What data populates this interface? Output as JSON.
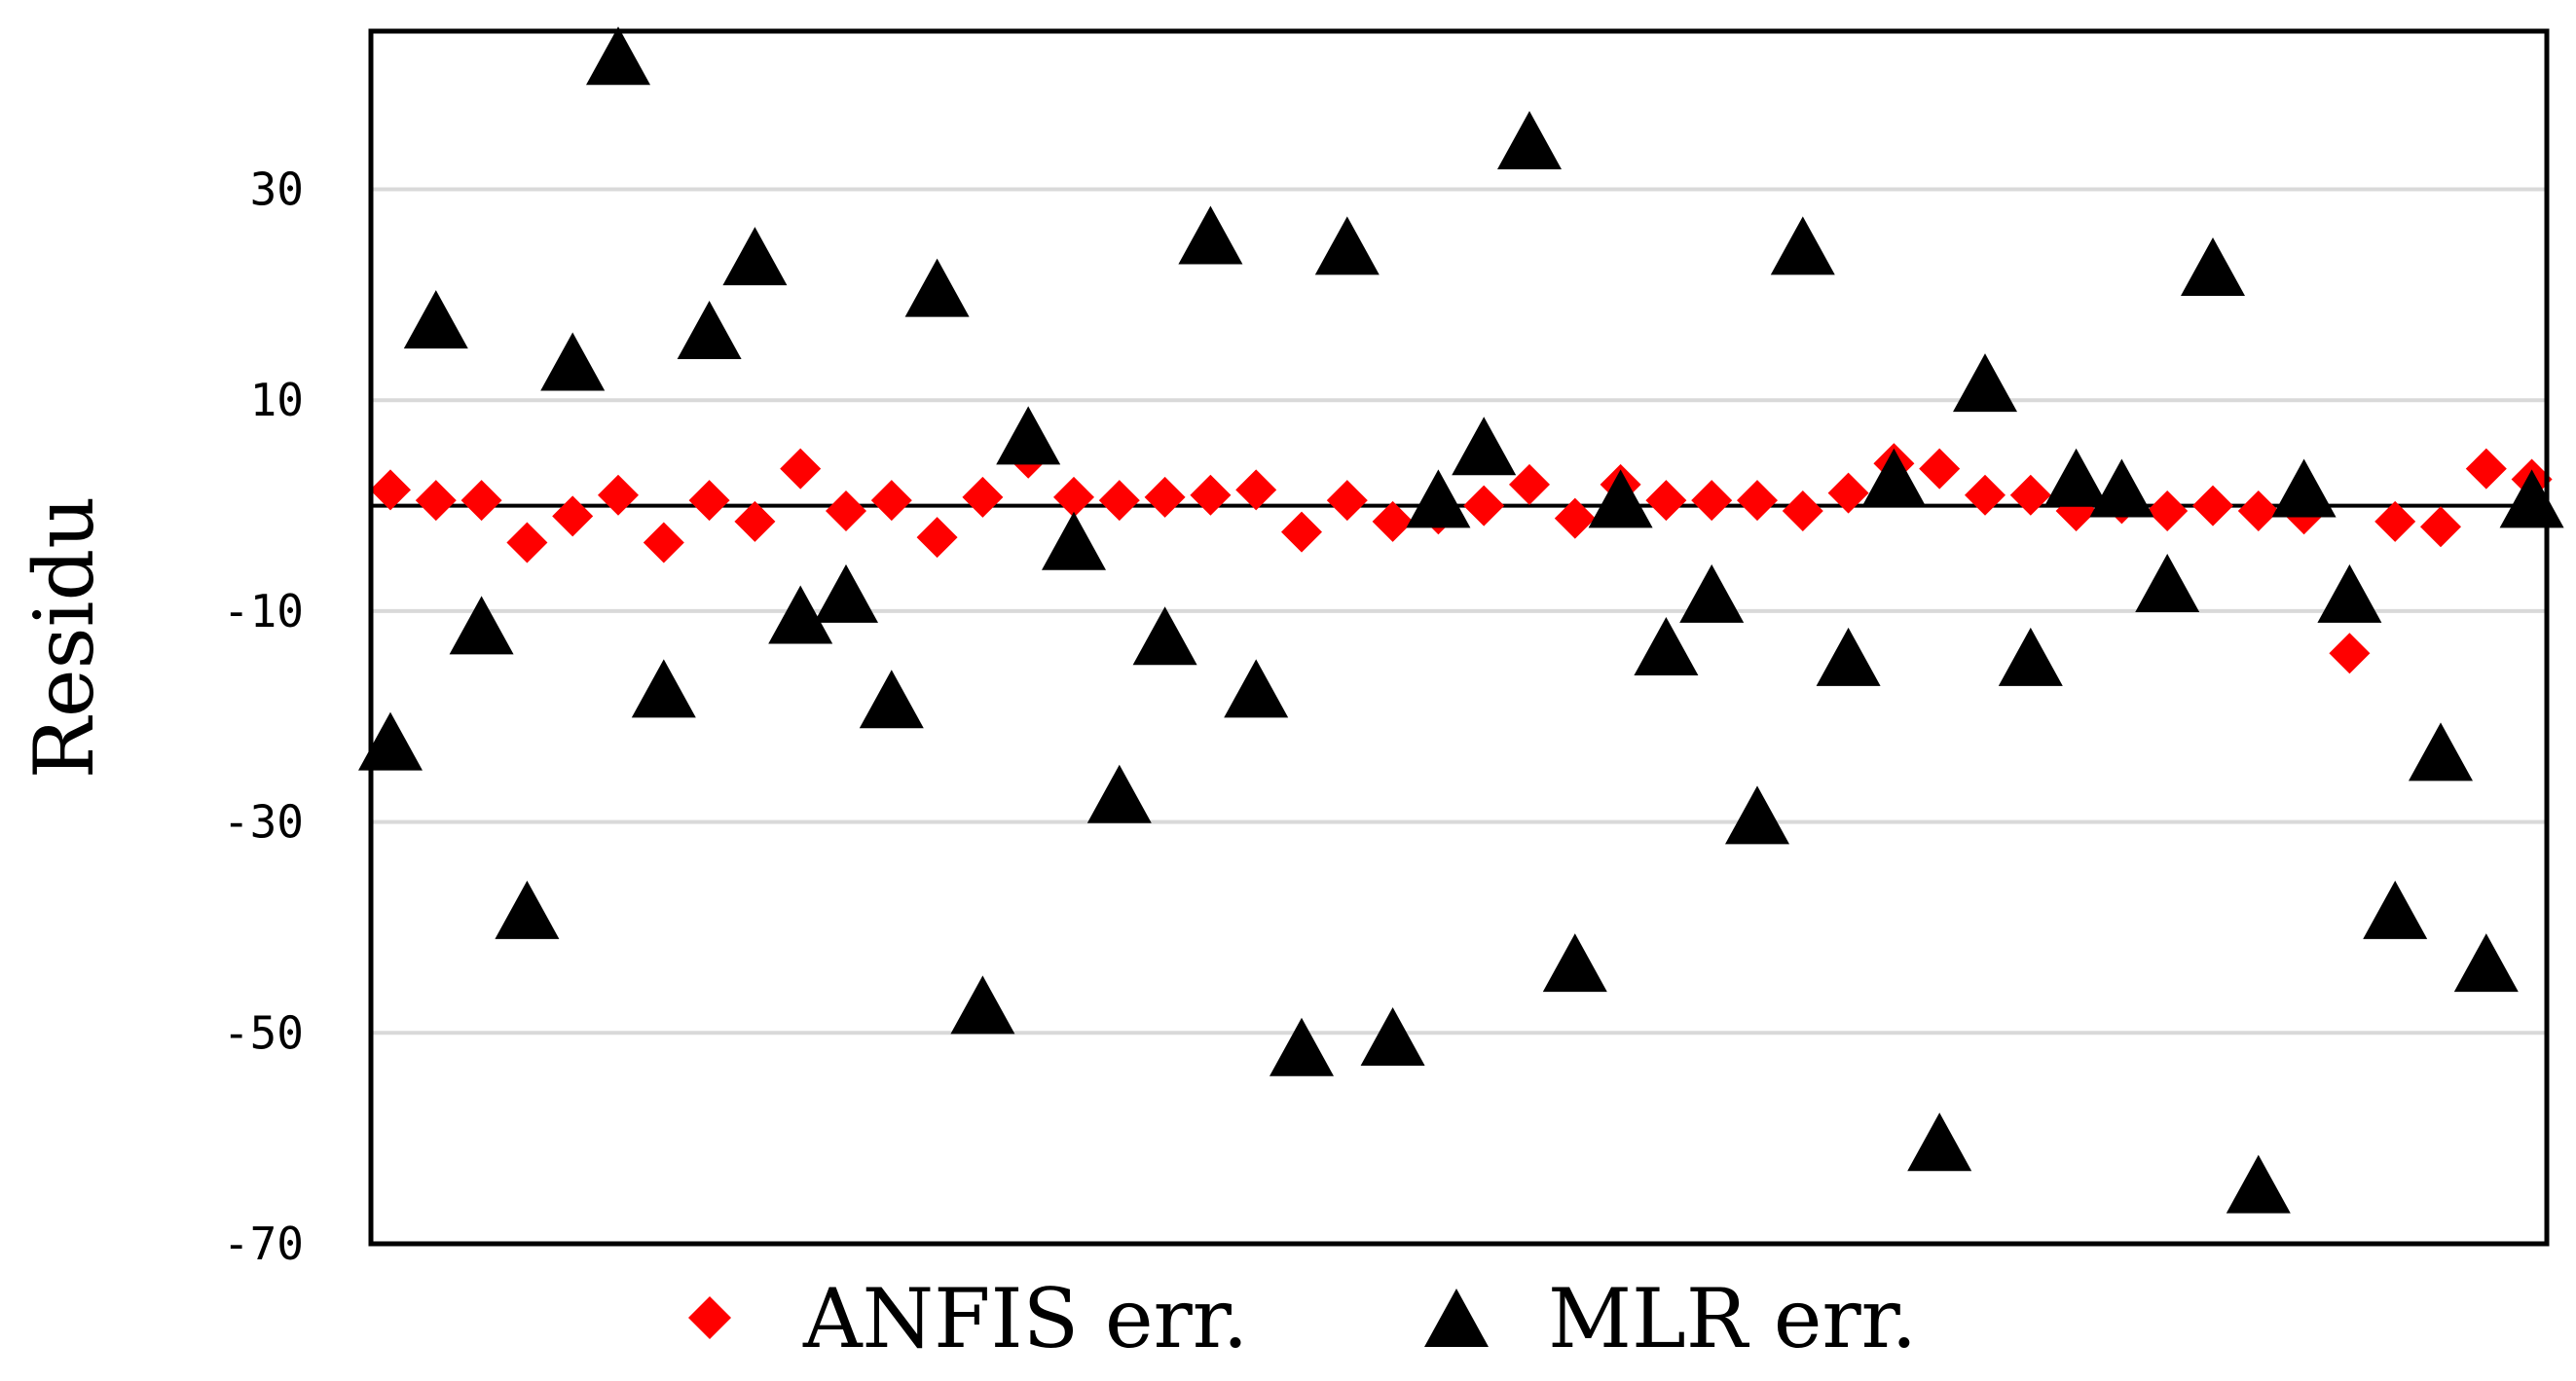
{
  "chart_data": {
    "type": "scatter",
    "title": "",
    "xlabel": "",
    "ylabel": "Residu",
    "ylim": [
      -70,
      45
    ],
    "yticks": [
      30,
      10,
      -10,
      -30,
      -50,
      -70
    ],
    "ytick_labels": [
      "30",
      "10",
      "-10",
      "-30",
      "-50",
      "-70"
    ],
    "grid": true,
    "zero_line": true,
    "legend_position": "bottom",
    "series": [
      {
        "name": "ANFIS err.",
        "marker": "diamond",
        "color": "#ff0000",
        "x": [
          1,
          2,
          3,
          4,
          5,
          6,
          7,
          8,
          9,
          10,
          11,
          12,
          13,
          14,
          15,
          16,
          17,
          18,
          19,
          20,
          21,
          22,
          23,
          24,
          25,
          26,
          27,
          28,
          29,
          30,
          31,
          32,
          33,
          34,
          35,
          36,
          37,
          38,
          39,
          40,
          41,
          42,
          43,
          44,
          45,
          46,
          47,
          48
        ],
        "values": [
          1.5,
          0.5,
          0.5,
          -3.5,
          -1,
          1,
          -3.5,
          0.5,
          -1.5,
          3.5,
          -0.5,
          0.5,
          -3,
          0.8,
          4.5,
          0.8,
          0.5,
          0.8,
          1,
          1.5,
          -2.5,
          0.5,
          -1.5,
          -0.8,
          0,
          2,
          -1.2,
          2,
          0.5,
          0.5,
          0.5,
          -0.5,
          1.2,
          4,
          3.5,
          1,
          1,
          -0.5,
          0.2,
          -0.5,
          0,
          -0.5,
          -0.8,
          -14,
          -1.5,
          -2,
          3.5,
          2.5
        ]
      },
      {
        "name": "MLR err.",
        "marker": "triangle",
        "color": "#000000",
        "x": [
          1,
          2,
          3,
          4,
          5,
          6,
          7,
          8,
          9,
          10,
          11,
          12,
          13,
          14,
          15,
          16,
          17,
          18,
          19,
          20,
          21,
          22,
          23,
          24,
          25,
          26,
          27,
          28,
          29,
          30,
          31,
          32,
          33,
          34,
          35,
          36,
          37,
          38,
          39,
          40,
          41,
          42,
          43,
          44,
          45,
          46,
          47,
          48
        ],
        "values": [
          -23,
          17,
          -12,
          -39,
          13,
          42,
          -18,
          16,
          23,
          -11,
          -9,
          -19,
          20,
          -48,
          6,
          -4,
          -28,
          -13,
          25,
          -18,
          -52,
          24,
          -51,
          0,
          5,
          34,
          -44,
          0,
          -14,
          -9,
          -30,
          24,
          -15,
          2,
          -61,
          11,
          -15,
          2,
          1,
          -8,
          22,
          -65,
          1,
          -9,
          -39,
          -24,
          -44,
          0
        ]
      }
    ]
  }
}
